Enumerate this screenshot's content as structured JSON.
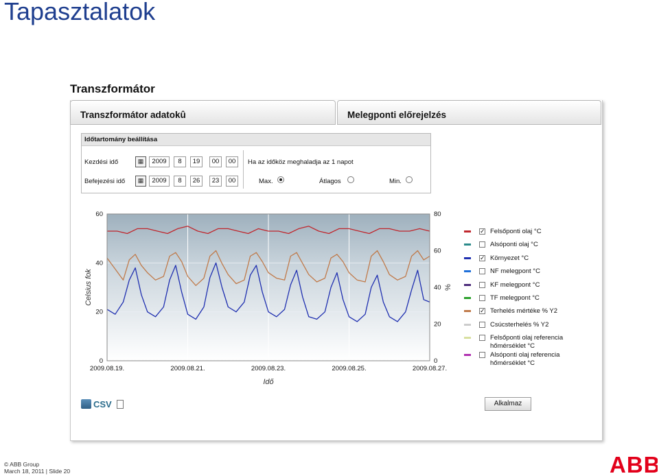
{
  "slide": {
    "title": "Tapasztalatok",
    "footer_line1": "© ABB Group",
    "footer_line2": "March 18, 2011 | Slide 20",
    "logo_text": "ABB",
    "logo_color": "#e2001a"
  },
  "app": {
    "title": "Transzformátor",
    "tabs": [
      "Transzformátor adatokû",
      "Melegponti előrejelzés"
    ]
  },
  "time_range": {
    "header": "Időtartomány beállítása",
    "start_label": "Kezdési idő",
    "end_label": "Befejezési idő",
    "start": [
      "2009",
      "8",
      "19",
      "00",
      "00"
    ],
    "end": [
      "2009",
      "8",
      "26",
      "23",
      "00"
    ],
    "note": "Ha az időköz meghaladja az 1 napot",
    "aggregation_options": [
      "Max.",
      "Átlagos",
      "Min."
    ],
    "aggregation_selected": "Max."
  },
  "legend": [
    {
      "label": "Felsőponti olaj °C",
      "color": "#c0272d",
      "checked": true
    },
    {
      "label": "Alsóponti olaj °C",
      "color": "#2a8a8a",
      "checked": false
    },
    {
      "label": "Környezet °C",
      "color": "#1f2fb0",
      "checked": true
    },
    {
      "label": "NF melegpont °C",
      "color": "#1e6fd9",
      "checked": false
    },
    {
      "label": "KF melegpont °C",
      "color": "#4b2a7a",
      "checked": false
    },
    {
      "label": "TF melegpont °C",
      "color": "#2aa02a",
      "checked": false
    },
    {
      "label": "Terhelés mértéke % Y2",
      "color": "#c07a4a",
      "checked": true
    },
    {
      "label": "Csúcsterhelés % Y2",
      "color": "#cccccc",
      "checked": false
    },
    {
      "label": "Felsőponti olaj referencia\nhőmérséklet °C",
      "color": "#d8e0a0",
      "checked": false
    },
    {
      "label": "Alsóponti olaj referencia\nhőmérséklet °C",
      "color": "#b030b0",
      "checked": false
    }
  ],
  "actions": {
    "csv_label": "CSV",
    "apply_label": "Alkalmaz"
  },
  "chart_data": {
    "type": "line",
    "xlabel": "Idő",
    "ylabel": "Celsius fok",
    "y2label": "%",
    "ylim": [
      0,
      60
    ],
    "y2lim": [
      0,
      80
    ],
    "yticks": [
      0,
      20,
      40,
      60
    ],
    "y2ticks": [
      0,
      20,
      40,
      60,
      80
    ],
    "xlim": [
      "2009.08.19.",
      "2009.08.27."
    ],
    "xtick_labels": [
      "2009.08.19.",
      "2009.08.21.",
      "2009.08.23.",
      "2009.08.25.",
      "2009.08.27."
    ],
    "grid": true,
    "background": "shaded blue-grey gradient",
    "series": [
      {
        "name": "Felsőponti olaj °C",
        "axis": "y",
        "color": "#c0272d",
        "x_days": [
          0,
          0.25,
          0.5,
          0.75,
          1,
          1.25,
          1.5,
          1.75,
          2,
          2.25,
          2.5,
          2.75,
          3,
          3.25,
          3.5,
          3.75,
          4,
          4.25,
          4.5,
          4.75,
          5,
          5.25,
          5.5,
          5.75,
          6,
          6.25,
          6.5,
          6.75,
          7,
          7.25,
          7.5,
          7.75,
          8
        ],
        "values": [
          53,
          53,
          52,
          54,
          54,
          53,
          52,
          54,
          55,
          53,
          52,
          54,
          54,
          53,
          52,
          54,
          53,
          53,
          52,
          54,
          55,
          53,
          52,
          54,
          54,
          53,
          52,
          54,
          54,
          53,
          53,
          54,
          53
        ]
      },
      {
        "name": "Környezet °C",
        "axis": "y",
        "color": "#1f2fb0",
        "x_days": [
          0,
          0.2,
          0.4,
          0.55,
          0.7,
          0.85,
          1,
          1.2,
          1.4,
          1.55,
          1.7,
          1.85,
          2,
          2.2,
          2.4,
          2.55,
          2.7,
          2.85,
          3,
          3.2,
          3.4,
          3.55,
          3.7,
          3.85,
          4,
          4.2,
          4.4,
          4.55,
          4.7,
          4.85,
          5,
          5.2,
          5.4,
          5.55,
          5.7,
          5.85,
          6,
          6.2,
          6.4,
          6.55,
          6.7,
          6.85,
          7,
          7.2,
          7.4,
          7.55,
          7.7,
          7.85,
          8
        ],
        "values": [
          21,
          19,
          24,
          33,
          38,
          27,
          20,
          18,
          22,
          33,
          39,
          28,
          19,
          17,
          22,
          34,
          40,
          30,
          22,
          20,
          24,
          35,
          39,
          28,
          20,
          18,
          21,
          31,
          37,
          26,
          18,
          17,
          20,
          30,
          36,
          25,
          18,
          16,
          19,
          30,
          35,
          24,
          18,
          16,
          20,
          29,
          37,
          25,
          24
        ]
      },
      {
        "name": "Terhelés mértéke % Y2",
        "axis": "y2",
        "color": "#c07a4a",
        "x_days": [
          0,
          0.2,
          0.4,
          0.55,
          0.7,
          0.85,
          1,
          1.2,
          1.4,
          1.55,
          1.7,
          1.85,
          2,
          2.2,
          2.4,
          2.55,
          2.7,
          2.85,
          3,
          3.2,
          3.4,
          3.55,
          3.7,
          3.85,
          4,
          4.2,
          4.4,
          4.55,
          4.7,
          4.85,
          5,
          5.2,
          5.4,
          5.55,
          5.7,
          5.85,
          6,
          6.2,
          6.4,
          6.55,
          6.7,
          6.85,
          7,
          7.2,
          7.4,
          7.55,
          7.7,
          7.85,
          8
        ],
        "values": [
          56,
          50,
          44,
          55,
          58,
          52,
          48,
          44,
          46,
          57,
          59,
          54,
          46,
          41,
          45,
          57,
          60,
          53,
          47,
          42,
          44,
          57,
          59,
          54,
          48,
          45,
          44,
          57,
          59,
          53,
          47,
          43,
          45,
          56,
          58,
          54,
          48,
          44,
          43,
          57,
          60,
          54,
          47,
          44,
          46,
          57,
          60,
          55,
          57
        ]
      }
    ]
  }
}
